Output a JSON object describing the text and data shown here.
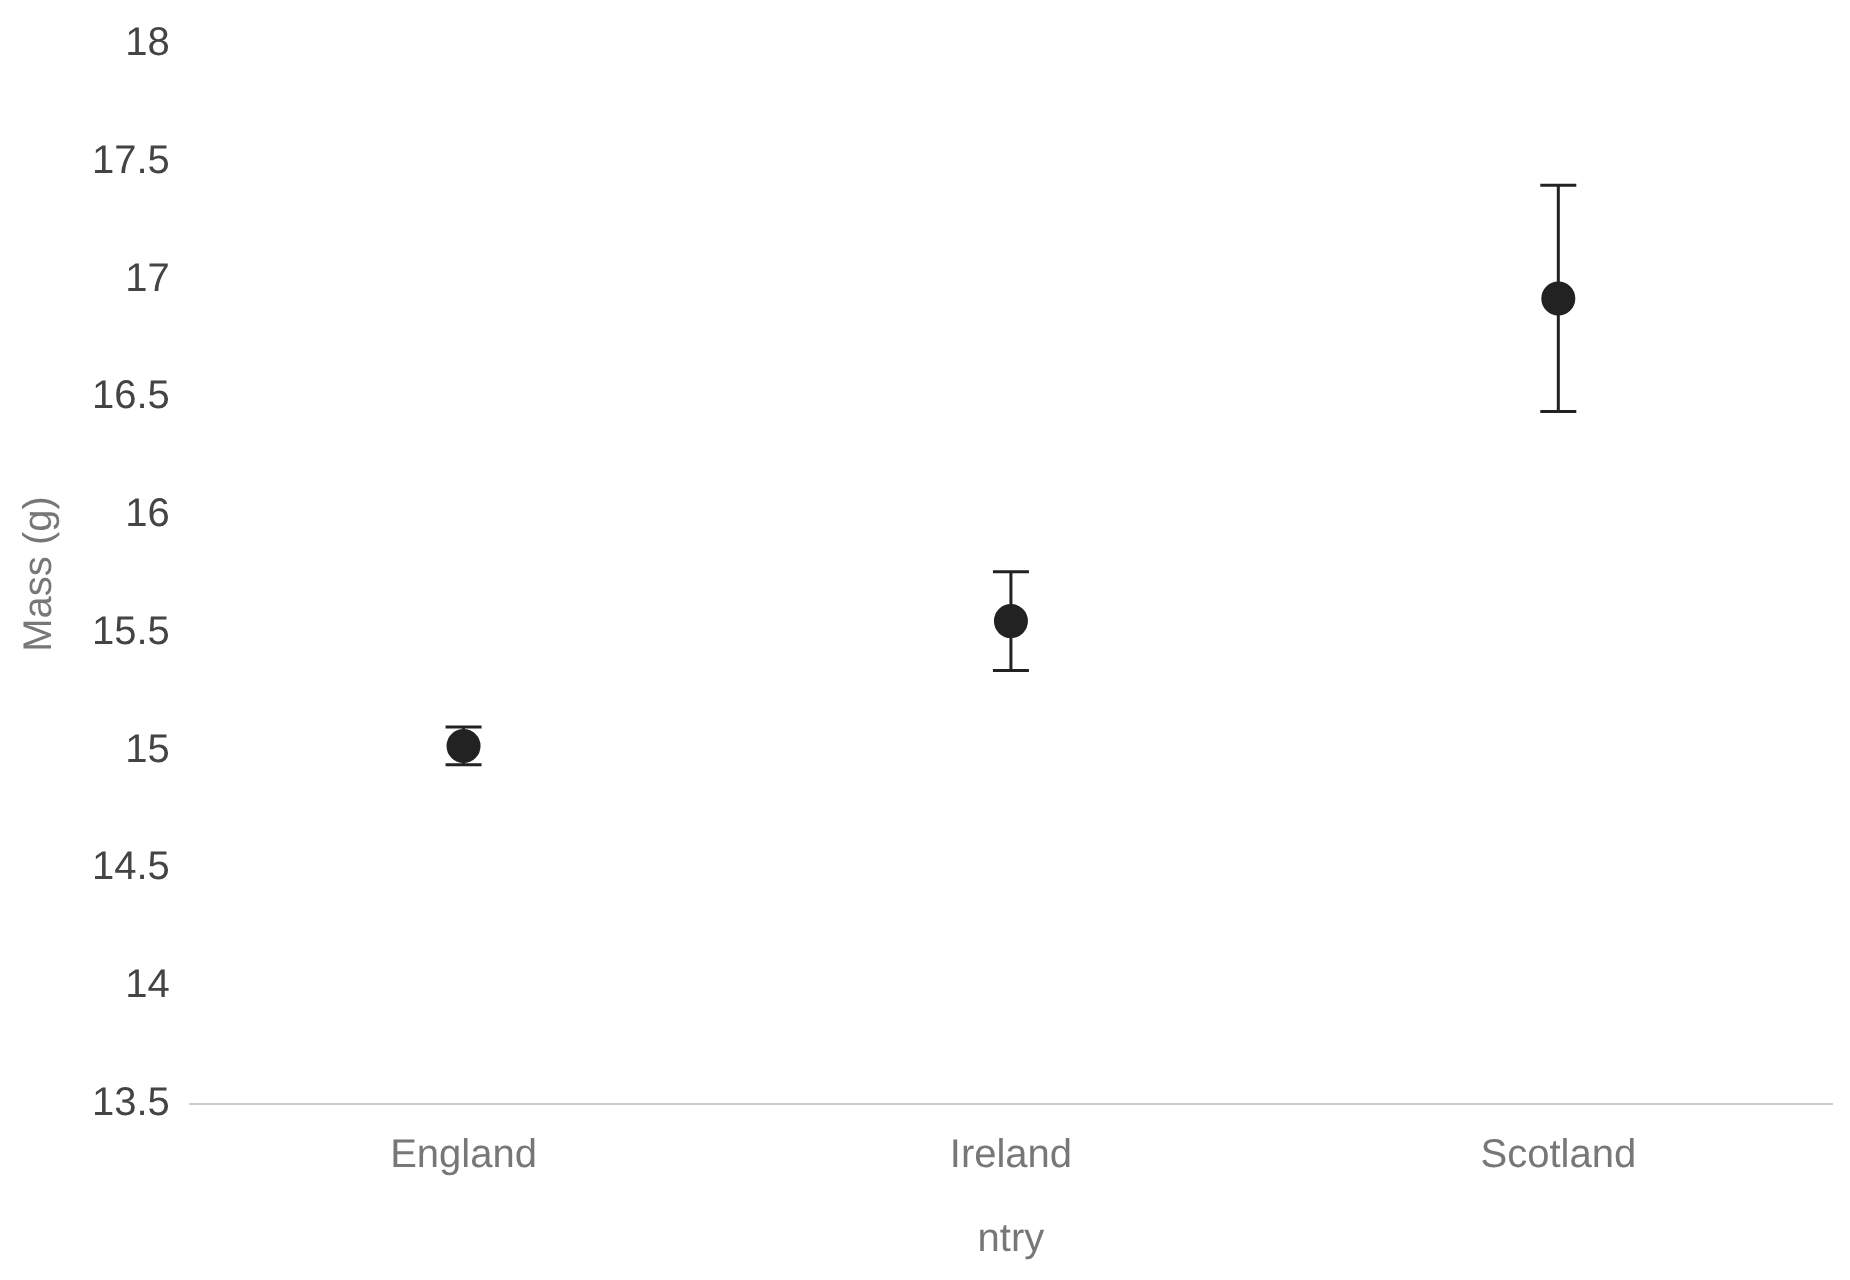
{
  "chart_data": {
    "type": "scatter",
    "xlabel": "ntry",
    "ylabel": "Mass (g)",
    "categories": [
      "England",
      "Ireland",
      "Scotland"
    ],
    "values": [
      15.02,
      15.55,
      16.92
    ],
    "errors": [
      0.08,
      0.21,
      0.48
    ],
    "color": "#222222",
    "ylim": [
      13.5,
      18
    ],
    "yticks": [
      13.5,
      14,
      14.5,
      15,
      15.5,
      16,
      16.5,
      17,
      17.5,
      18
    ],
    "grid": false,
    "legend": false
  }
}
